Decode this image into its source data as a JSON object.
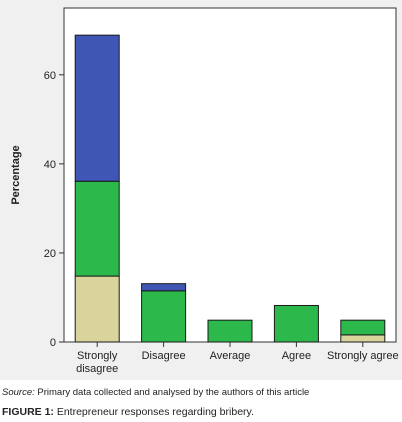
{
  "chart_data": {
    "type": "bar",
    "stacked": true,
    "title": "",
    "xlabel": "",
    "ylabel": "Percentage",
    "ylim": [
      0,
      75
    ],
    "yticks": [
      0,
      20,
      40,
      60
    ],
    "grid": false,
    "legend": "none",
    "categories": [
      "Strongly disagree",
      "Disagree",
      "Average",
      "Agree",
      "Strongly agree"
    ],
    "category_lines": [
      [
        "Strongly",
        "disagree"
      ],
      [
        "Disagree"
      ],
      [
        "Average"
      ],
      [
        "Agree"
      ],
      [
        "Strongly agree"
      ]
    ],
    "series": [
      {
        "color": "#d8d49c",
        "values": [
          14.8,
          0,
          0,
          0,
          1.6
        ]
      },
      {
        "color": "#2db84b",
        "values": [
          21.3,
          11.5,
          4.9,
          8.2,
          3.3
        ]
      },
      {
        "color": "#3f56b4",
        "values": [
          32.8,
          1.6,
          0,
          0,
          0
        ]
      }
    ]
  },
  "caption": {
    "source_label": "Source:",
    "source_text": " Primary data collected and analysed by the authors of this article",
    "figure_label": "FIGURE 1:",
    "figure_text": " Entrepreneur responses regarding bribery."
  }
}
